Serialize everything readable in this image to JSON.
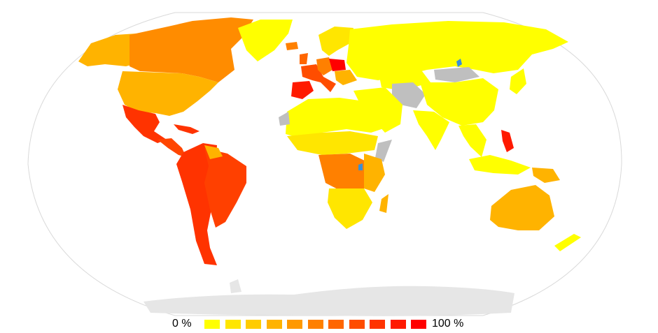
{
  "legend": {
    "min_label": "0 %",
    "max_label": "100 %",
    "scale_colors": [
      "#ffff00",
      "#ffe600",
      "#ffcc00",
      "#ffb300",
      "#ff9900",
      "#ff8000",
      "#ff6600",
      "#ff4d00",
      "#ff3300",
      "#ff1a00",
      "#ff0000"
    ]
  },
  "map": {
    "land_colors": {
      "no_data": "#bfbfbf",
      "antarctica": "#e6e6e6",
      "water": "#3a8fd6",
      "outline": "#d9d9d9"
    }
  }
}
